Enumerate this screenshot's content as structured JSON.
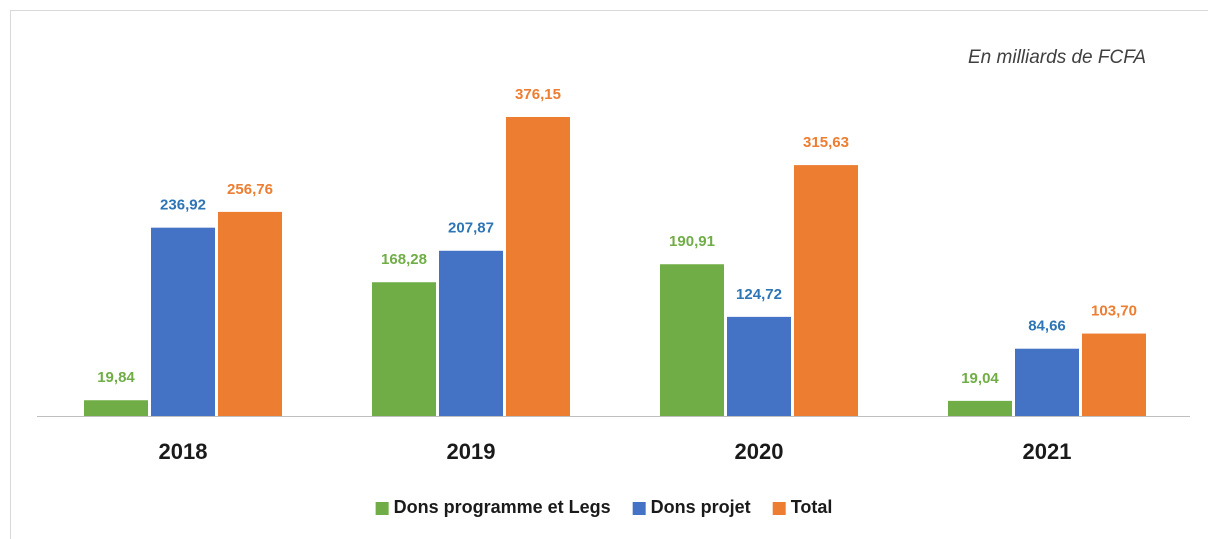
{
  "chart_data": {
    "type": "bar",
    "subtitle": "En milliards de FCFA",
    "categories": [
      "2018",
      "2019",
      "2020",
      "2021"
    ],
    "series": [
      {
        "name": "Dons programme et Legs",
        "color": "#70ad47",
        "label_color": "#70ad47",
        "values": [
          19.84,
          168.28,
          190.91,
          19.04
        ],
        "value_labels": [
          "19,84",
          "168,28",
          "190,91",
          "19,04"
        ]
      },
      {
        "name": "Dons projet",
        "color": "#4472c4",
        "label_color": "#2e75b6",
        "values": [
          236.92,
          207.87,
          124.72,
          84.66
        ],
        "value_labels": [
          "236,92",
          "207,87",
          "124,72",
          "84,66"
        ]
      },
      {
        "name": "Total",
        "color": "#ed7d31",
        "label_color": "#ed7d31",
        "values": [
          256.76,
          376.15,
          315.63,
          103.7
        ],
        "value_labels": [
          "256,76",
          "376,15",
          "315,63",
          "103,70"
        ]
      }
    ],
    "legend": "bottom"
  }
}
